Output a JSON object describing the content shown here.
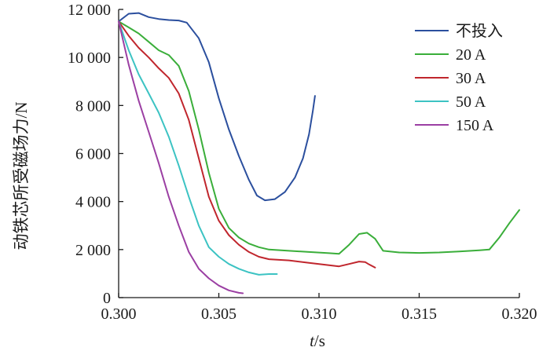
{
  "chart_data": {
    "type": "line",
    "title": "",
    "xlabel_italic": "t",
    "xlabel_unit": "/s",
    "ylabel": "动铁芯所受磁场力/N",
    "xlim": [
      0.3,
      0.32
    ],
    "ylim": [
      0,
      12000
    ],
    "x_ticks": [
      {
        "value": 0.3,
        "label": "0.300"
      },
      {
        "value": 0.305,
        "label": "0.305"
      },
      {
        "value": 0.31,
        "label": "0.310"
      },
      {
        "value": 0.315,
        "label": "0.315"
      },
      {
        "value": 0.32,
        "label": "0.320"
      }
    ],
    "y_ticks": [
      {
        "value": 0,
        "label": "0"
      },
      {
        "value": 2000,
        "label": "2 000"
      },
      {
        "value": 4000,
        "label": "4 000"
      },
      {
        "value": 6000,
        "label": "6 000"
      },
      {
        "value": 8000,
        "label": "8 000"
      },
      {
        "value": 10000,
        "label": "10 000"
      },
      {
        "value": 12000,
        "label": "12 000"
      }
    ],
    "legend_position": "top-right",
    "series": [
      {
        "name": "不投入",
        "color": "#2b4f9e",
        "points": [
          [
            0.3,
            11500
          ],
          [
            0.3005,
            11820
          ],
          [
            0.301,
            11850
          ],
          [
            0.3015,
            11680
          ],
          [
            0.302,
            11600
          ],
          [
            0.3025,
            11560
          ],
          [
            0.303,
            11540
          ],
          [
            0.3034,
            11450
          ],
          [
            0.304,
            10800
          ],
          [
            0.3045,
            9800
          ],
          [
            0.305,
            8300
          ],
          [
            0.3055,
            7000
          ],
          [
            0.306,
            5900
          ],
          [
            0.3065,
            4900
          ],
          [
            0.3069,
            4250
          ],
          [
            0.3073,
            4050
          ],
          [
            0.3078,
            4100
          ],
          [
            0.3083,
            4400
          ],
          [
            0.3088,
            5000
          ],
          [
            0.3092,
            5800
          ],
          [
            0.3095,
            6800
          ],
          [
            0.3097,
            7800
          ],
          [
            0.3098,
            8400
          ]
        ]
      },
      {
        "name": "20 A",
        "color": "#3aae3a",
        "points": [
          [
            0.3,
            11500
          ],
          [
            0.3005,
            11250
          ],
          [
            0.301,
            11000
          ],
          [
            0.3015,
            10650
          ],
          [
            0.302,
            10300
          ],
          [
            0.3025,
            10100
          ],
          [
            0.303,
            9650
          ],
          [
            0.3035,
            8600
          ],
          [
            0.304,
            7000
          ],
          [
            0.3045,
            5200
          ],
          [
            0.305,
            3700
          ],
          [
            0.3055,
            2900
          ],
          [
            0.306,
            2500
          ],
          [
            0.3065,
            2250
          ],
          [
            0.307,
            2100
          ],
          [
            0.3075,
            2000
          ],
          [
            0.3085,
            1950
          ],
          [
            0.3095,
            1900
          ],
          [
            0.3105,
            1850
          ],
          [
            0.311,
            1820
          ],
          [
            0.3115,
            2200
          ],
          [
            0.312,
            2650
          ],
          [
            0.3124,
            2700
          ],
          [
            0.3128,
            2450
          ],
          [
            0.3132,
            1950
          ],
          [
            0.314,
            1880
          ],
          [
            0.315,
            1860
          ],
          [
            0.316,
            1880
          ],
          [
            0.317,
            1920
          ],
          [
            0.318,
            1970
          ],
          [
            0.3185,
            2000
          ],
          [
            0.319,
            2500
          ],
          [
            0.3195,
            3100
          ],
          [
            0.32,
            3650
          ]
        ]
      },
      {
        "name": "30 A",
        "color": "#c0262d",
        "points": [
          [
            0.3,
            11500
          ],
          [
            0.3005,
            10900
          ],
          [
            0.301,
            10400
          ],
          [
            0.3015,
            10000
          ],
          [
            0.302,
            9550
          ],
          [
            0.3025,
            9150
          ],
          [
            0.303,
            8500
          ],
          [
            0.3035,
            7400
          ],
          [
            0.304,
            5800
          ],
          [
            0.3045,
            4200
          ],
          [
            0.305,
            3200
          ],
          [
            0.3055,
            2600
          ],
          [
            0.306,
            2200
          ],
          [
            0.3065,
            1900
          ],
          [
            0.307,
            1700
          ],
          [
            0.3075,
            1600
          ],
          [
            0.3085,
            1550
          ],
          [
            0.3095,
            1450
          ],
          [
            0.3105,
            1350
          ],
          [
            0.311,
            1300
          ],
          [
            0.3115,
            1400
          ],
          [
            0.312,
            1500
          ],
          [
            0.3123,
            1480
          ],
          [
            0.3125,
            1380
          ],
          [
            0.3128,
            1250
          ]
        ]
      },
      {
        "name": "50 A",
        "color": "#3cc3c3",
        "points": [
          [
            0.3,
            11500
          ],
          [
            0.3005,
            10300
          ],
          [
            0.301,
            9300
          ],
          [
            0.3015,
            8500
          ],
          [
            0.302,
            7700
          ],
          [
            0.3025,
            6700
          ],
          [
            0.303,
            5500
          ],
          [
            0.3035,
            4200
          ],
          [
            0.304,
            3000
          ],
          [
            0.3045,
            2100
          ],
          [
            0.305,
            1700
          ],
          [
            0.3055,
            1400
          ],
          [
            0.306,
            1200
          ],
          [
            0.3065,
            1050
          ],
          [
            0.307,
            950
          ],
          [
            0.3075,
            980
          ],
          [
            0.3079,
            980
          ]
        ]
      },
      {
        "name": "150 A",
        "color": "#9b3fa3",
        "points": [
          [
            0.3,
            11500
          ],
          [
            0.3005,
            9700
          ],
          [
            0.301,
            8200
          ],
          [
            0.3015,
            6900
          ],
          [
            0.302,
            5600
          ],
          [
            0.3025,
            4200
          ],
          [
            0.303,
            3000
          ],
          [
            0.3035,
            1900
          ],
          [
            0.304,
            1200
          ],
          [
            0.3045,
            800
          ],
          [
            0.305,
            500
          ],
          [
            0.3055,
            300
          ],
          [
            0.306,
            200
          ],
          [
            0.3062,
            180
          ]
        ]
      }
    ]
  }
}
